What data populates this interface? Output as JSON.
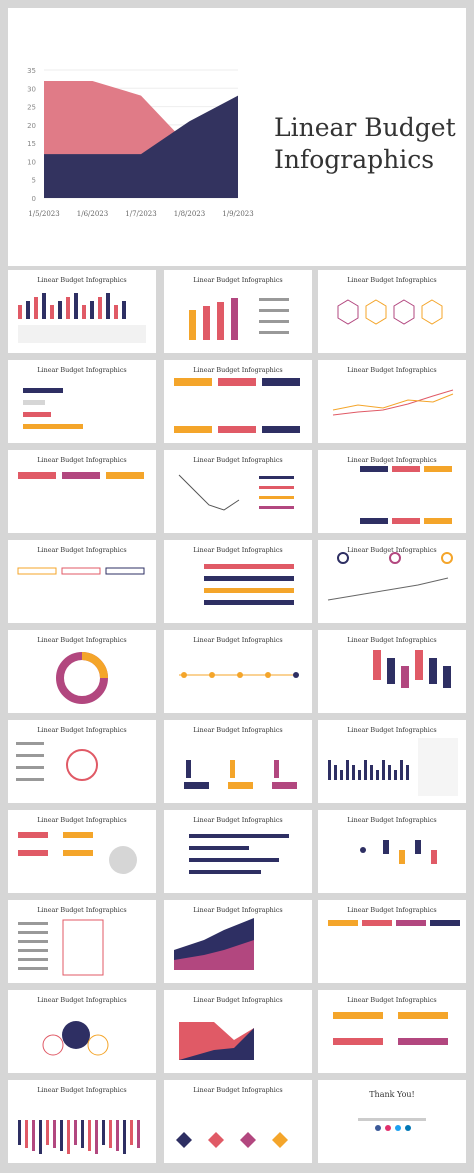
{
  "hero": {
    "title_line1": "Linear Budget",
    "title_line2": "Infographics",
    "chart_data": {
      "type": "area",
      "x": [
        "1/5/2023",
        "1/6/2023",
        "1/7/2023",
        "1/8/2023",
        "1/9/2023"
      ],
      "series": [
        {
          "values": [
            32,
            32,
            28,
            14,
            10
          ],
          "color": "#e07b87"
        },
        {
          "values": [
            12,
            12,
            12,
            21,
            28
          ],
          "color": "#33335f"
        }
      ],
      "yticks": [
        "0",
        "5",
        "10",
        "15",
        "20",
        "25",
        "30",
        "35"
      ],
      "ylim": [
        0,
        35
      ]
    }
  },
  "thumb_title": "Linear Budget Infographics",
  "thanks": {
    "title": "Thank You!"
  },
  "colors": {
    "navy": "#2e2f63",
    "pink": "#e05a66",
    "orange": "#f4a52a",
    "magenta": "#b2477f",
    "gray": "#d6d6d6"
  }
}
